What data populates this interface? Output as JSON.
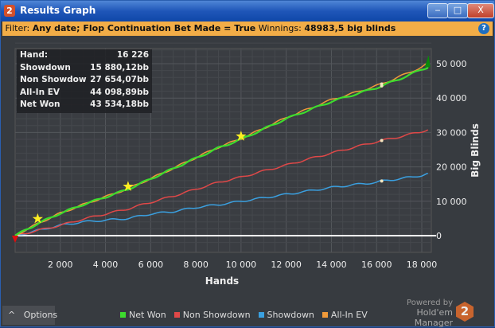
{
  "window": {
    "title": "Results Graph",
    "logo": "2",
    "minimize": "‒",
    "maximize": "□",
    "close": "X"
  },
  "filter": {
    "label": "Filter:",
    "value": "Any date; Flop Continuation Bet Made = True",
    "winnings_label": "Winnings:",
    "winnings_value": "48983,5 big blinds",
    "help": "?"
  },
  "stats": [
    {
      "label": "Hand:",
      "value": "16 226"
    },
    {
      "label": "Showdown",
      "value": "15 880,12bb"
    },
    {
      "label": "Non Showdow",
      "value": "27 654,07bb"
    },
    {
      "label": "All-In EV",
      "value": "44 098,89bb"
    },
    {
      "label": "Net Won",
      "value": "43 534,18bb"
    }
  ],
  "options": {
    "icon": "^",
    "label": "Options"
  },
  "branding": {
    "powered": "Powered by",
    "name": "Hold'em Manager",
    "logo": "2"
  },
  "chart_data": {
    "type": "line",
    "xlabel": "Hands",
    "ylabel": "Big Blinds",
    "xlim": [
      0,
      18400
    ],
    "ylim": [
      -2000,
      57000
    ],
    "xticks": [
      2000,
      4000,
      6000,
      8000,
      10000,
      12000,
      14000,
      16000,
      18000
    ],
    "xtick_labels": [
      "2 000",
      "4 000",
      "6 000",
      "8 000",
      "10 000",
      "12 000",
      "14 000",
      "16 000",
      "18 000"
    ],
    "yticks": [
      0,
      10000,
      20000,
      30000,
      40000,
      50000
    ],
    "ytick_labels": [
      "0",
      "10 000",
      "20 000",
      "30 000",
      "40 000",
      "50 000"
    ],
    "x": [
      0,
      1000,
      2000,
      3000,
      4000,
      5000,
      6000,
      7000,
      8000,
      9000,
      10000,
      11000,
      12000,
      13000,
      14000,
      15000,
      16000,
      16226,
      17000,
      18000,
      18270
    ],
    "series": [
      {
        "name": "Net Won",
        "color": "#3ddc2e",
        "values": [
          0,
          3500,
          6500,
          9000,
          11200,
          13500,
          16500,
          19500,
          22500,
          25500,
          28000,
          31000,
          34000,
          36500,
          39000,
          41000,
          43000,
          43534,
          45500,
          48300,
          49000
        ]
      },
      {
        "name": "Non Showdown",
        "color": "#e04848",
        "values": [
          0,
          1500,
          3000,
          4800,
          6300,
          7800,
          9700,
          11500,
          13500,
          15500,
          17000,
          18800,
          20500,
          22300,
          24000,
          25700,
          27300,
          27654,
          28700,
          30300,
          30800
        ]
      },
      {
        "name": "Showdown",
        "color": "#3aa0e0",
        "values": [
          0,
          1500,
          3000,
          4000,
          4500,
          5000,
          6300,
          7000,
          8200,
          9000,
          10000,
          11000,
          12000,
          13000,
          14000,
          14800,
          15500,
          15880,
          16500,
          17500,
          18000
        ]
      },
      {
        "name": "All-In EV",
        "color": "#f09a3a",
        "values": [
          0,
          3500,
          6500,
          9000,
          11300,
          13700,
          16600,
          19600,
          22700,
          25700,
          28200,
          31200,
          34300,
          36900,
          39500,
          41500,
          43600,
          44099,
          46200,
          49000,
          50000
        ]
      }
    ],
    "stars": [
      {
        "x": 1000,
        "y": 4900
      },
      {
        "x": 5000,
        "y": 14300
      },
      {
        "x": 10000,
        "y": 28900
      }
    ],
    "marker_hand": 16226,
    "legend_position": "bottom"
  }
}
